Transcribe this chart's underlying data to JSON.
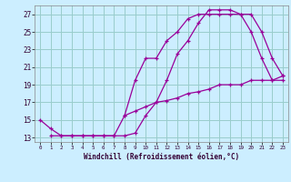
{
  "xlabel": "Windchill (Refroidissement éolien,°C)",
  "bg_color": "#cceeff",
  "grid_color": "#99cccc",
  "line_color": "#990099",
  "xlim": [
    -0.5,
    23.5
  ],
  "ylim": [
    12.5,
    28.0
  ],
  "yticks": [
    13,
    15,
    17,
    19,
    21,
    23,
    25,
    27
  ],
  "xticks": [
    0,
    1,
    2,
    3,
    4,
    5,
    6,
    7,
    8,
    9,
    10,
    11,
    12,
    13,
    14,
    15,
    16,
    17,
    18,
    19,
    20,
    21,
    22,
    23
  ],
  "line1_x": [
    0,
    1,
    2,
    3,
    4,
    5,
    6,
    7,
    8,
    9,
    10,
    11,
    12,
    13,
    14,
    15,
    16,
    17,
    18,
    19,
    20,
    21,
    22,
    23
  ],
  "line1_y": [
    15,
    14,
    13.2,
    13.2,
    13.2,
    13.2,
    13.2,
    13.2,
    13.2,
    13.5,
    15.5,
    17,
    19.5,
    22.5,
    24,
    26,
    27.5,
    27.5,
    27.5,
    27,
    27,
    25,
    22,
    20
  ],
  "line2_x": [
    1,
    2,
    3,
    4,
    5,
    6,
    7,
    8,
    9,
    10,
    11,
    12,
    13,
    14,
    15,
    16,
    17,
    18,
    19,
    20,
    21,
    22,
    23
  ],
  "line2_y": [
    13.2,
    13.2,
    13.2,
    13.2,
    13.2,
    13.2,
    13.2,
    15.5,
    19.5,
    22,
    22,
    24,
    25,
    26.5,
    27,
    27,
    27,
    27,
    27,
    25,
    22,
    19.5,
    20
  ],
  "line3_x": [
    8,
    9,
    10,
    11,
    12,
    13,
    14,
    15,
    16,
    17,
    18,
    19,
    20,
    21,
    22,
    23
  ],
  "line3_y": [
    15.5,
    16,
    16.5,
    17,
    17.2,
    17.5,
    18,
    18.2,
    18.5,
    19,
    19,
    19,
    19.5,
    19.5,
    19.5,
    19.5
  ]
}
